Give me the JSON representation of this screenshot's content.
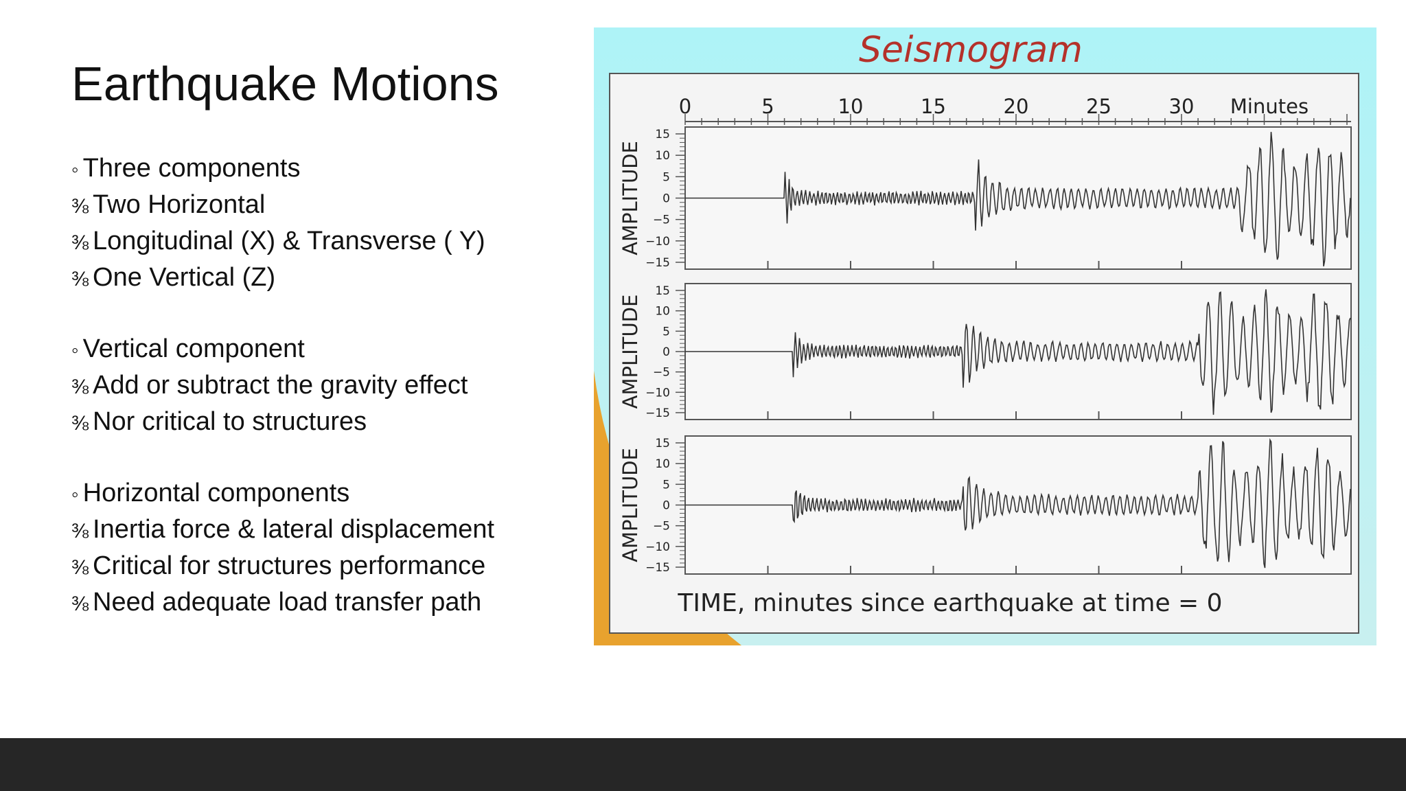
{
  "slide": {
    "title": "Earthquake Motions",
    "bullet": "◦",
    "sub_bullet": "⅜",
    "sections": [
      {
        "heading": "Three components",
        "items": [
          "Two Horizontal",
          "Longitudinal (X) & Transverse ( Y)",
          "One Vertical (Z)"
        ]
      },
      {
        "heading": "Vertical component",
        "items": [
          "Add or subtract the gravity effect",
          "Nor critical to structures"
        ]
      },
      {
        "heading": "Horizontal components",
        "items": [
          "Inertia force & lateral displacement",
          "Critical for structures performance",
          "Need adequate load transfer path"
        ]
      }
    ]
  },
  "figure": {
    "title": "Seismogram",
    "time_ticks": [
      0,
      5,
      10,
      15,
      20,
      25,
      30
    ],
    "time_unit": "Minutes",
    "amplitude_label": "AMPLITUDE",
    "amplitude_ticks": [
      15,
      10,
      5,
      0,
      "−5",
      "−10",
      "−15"
    ],
    "time_label": "TIME, minutes since earthquake at time = 0"
  }
}
